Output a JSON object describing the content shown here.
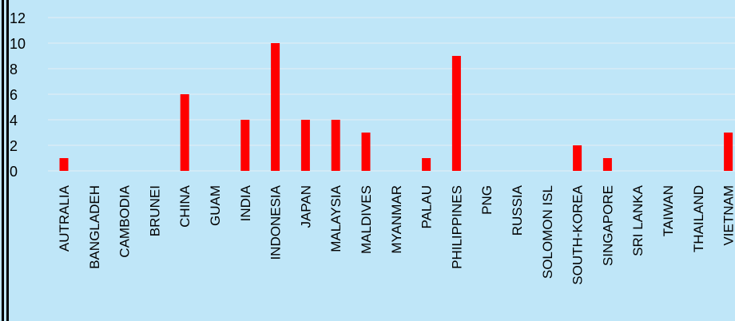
{
  "chart_data": {
    "type": "bar",
    "title": "",
    "xlabel": "",
    "ylabel": "",
    "ylim": [
      0,
      12
    ],
    "yticks": [
      0,
      2,
      4,
      6,
      8,
      10,
      12
    ],
    "grid": true,
    "categories": [
      "AUTRALIA",
      "BANGLADEH",
      "CAMBODIA",
      "BRUNEI",
      "CHINA",
      "GUAM",
      "INDIA",
      "INDONESIA",
      "JAPAN",
      "MALAYSIA",
      "MALDIVES",
      "MYANMAR",
      "PALAU",
      "PHILIPPINES",
      "PNG",
      "RUSSIA",
      "SOLOMON ISL",
      "SOUTH-KOREA",
      "SINGAPORE",
      "SRI LANKA",
      "TAIWAN",
      "THAILAND",
      "VIETNAM"
    ],
    "values": [
      1,
      0,
      0,
      0,
      6,
      0,
      4,
      10,
      4,
      4,
      3,
      0,
      1,
      9,
      0,
      0,
      0,
      2,
      1,
      0,
      0,
      0,
      3
    ],
    "colors": {
      "bar": "#ff0000",
      "background": "#bfe6f8",
      "grid": "#d9ecf5",
      "frame": "#000000"
    }
  }
}
